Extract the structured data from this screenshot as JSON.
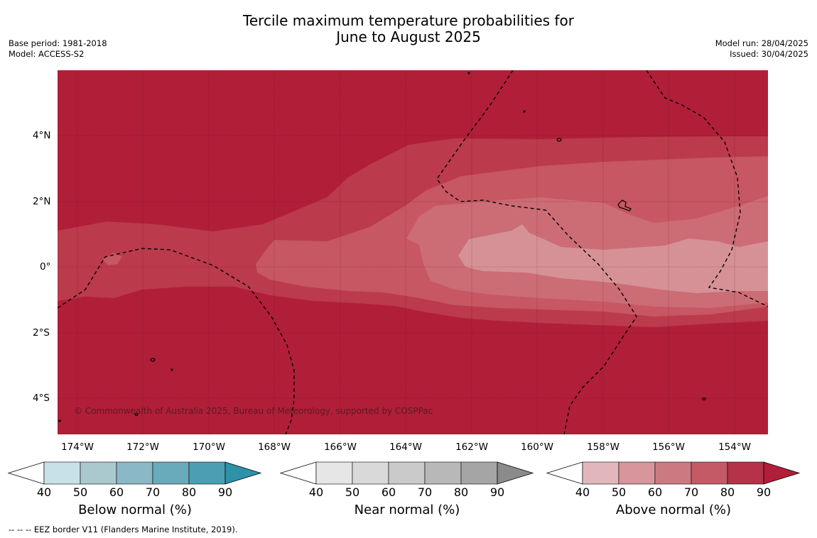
{
  "header": {
    "title_line1": "Tercile maximum temperature probabilities for",
    "title_line2": "June to August 2025",
    "base_period": "Base period: 1981-2018",
    "model": "Model: ACCESS-S2",
    "model_run": "Model run: 28/04/2025",
    "issued": "Issued: 30/04/2025"
  },
  "map": {
    "lat_labels": [
      "4°N",
      "2°N",
      "0°",
      "2°S",
      "4°S"
    ],
    "lon_labels": [
      "174°W",
      "172°W",
      "170°W",
      "168°W",
      "166°W",
      "164°W",
      "162°W",
      "160°W",
      "158°W",
      "156°W",
      "154°W"
    ],
    "copyright": "© Commonwealth of Australia 2025, Bureau of Meteorology, supported by COSPPac",
    "dominant_category": "Above normal",
    "colors": {
      "above_90": "#b11e38",
      "above_80": "#bb3a4c",
      "above_70": "#c75762",
      "above_60": "#cc6c75",
      "above_50": "#d69197"
    }
  },
  "colorbars": [
    {
      "label": "Below normal (%)",
      "ticks": [
        "40",
        "50",
        "60",
        "70",
        "80",
        "90"
      ],
      "colors": [
        "#c8e1e8",
        "#a9c9cf",
        "#8bb8c6",
        "#6aabbb",
        "#4c9fb2",
        "#2d91a7"
      ]
    },
    {
      "label": "Near normal (%)",
      "ticks": [
        "40",
        "50",
        "60",
        "70",
        "80",
        "90"
      ],
      "colors": [
        "#e6e6e6",
        "#d9d9d9",
        "#cacaca",
        "#b8b8b8",
        "#a5a5a5",
        "#8b8b8b"
      ]
    },
    {
      "label": "Above normal (%)",
      "ticks": [
        "40",
        "50",
        "60",
        "70",
        "80",
        "90"
      ],
      "colors": [
        "#e2b7bc",
        "#d8959c",
        "#cc7a82",
        "#c45a66",
        "#b63248",
        "#b01e3a"
      ]
    }
  ],
  "footer": {
    "eez_note": "--  --  -- EEZ border V11 (Flanders Marine Institute, 2019)."
  }
}
